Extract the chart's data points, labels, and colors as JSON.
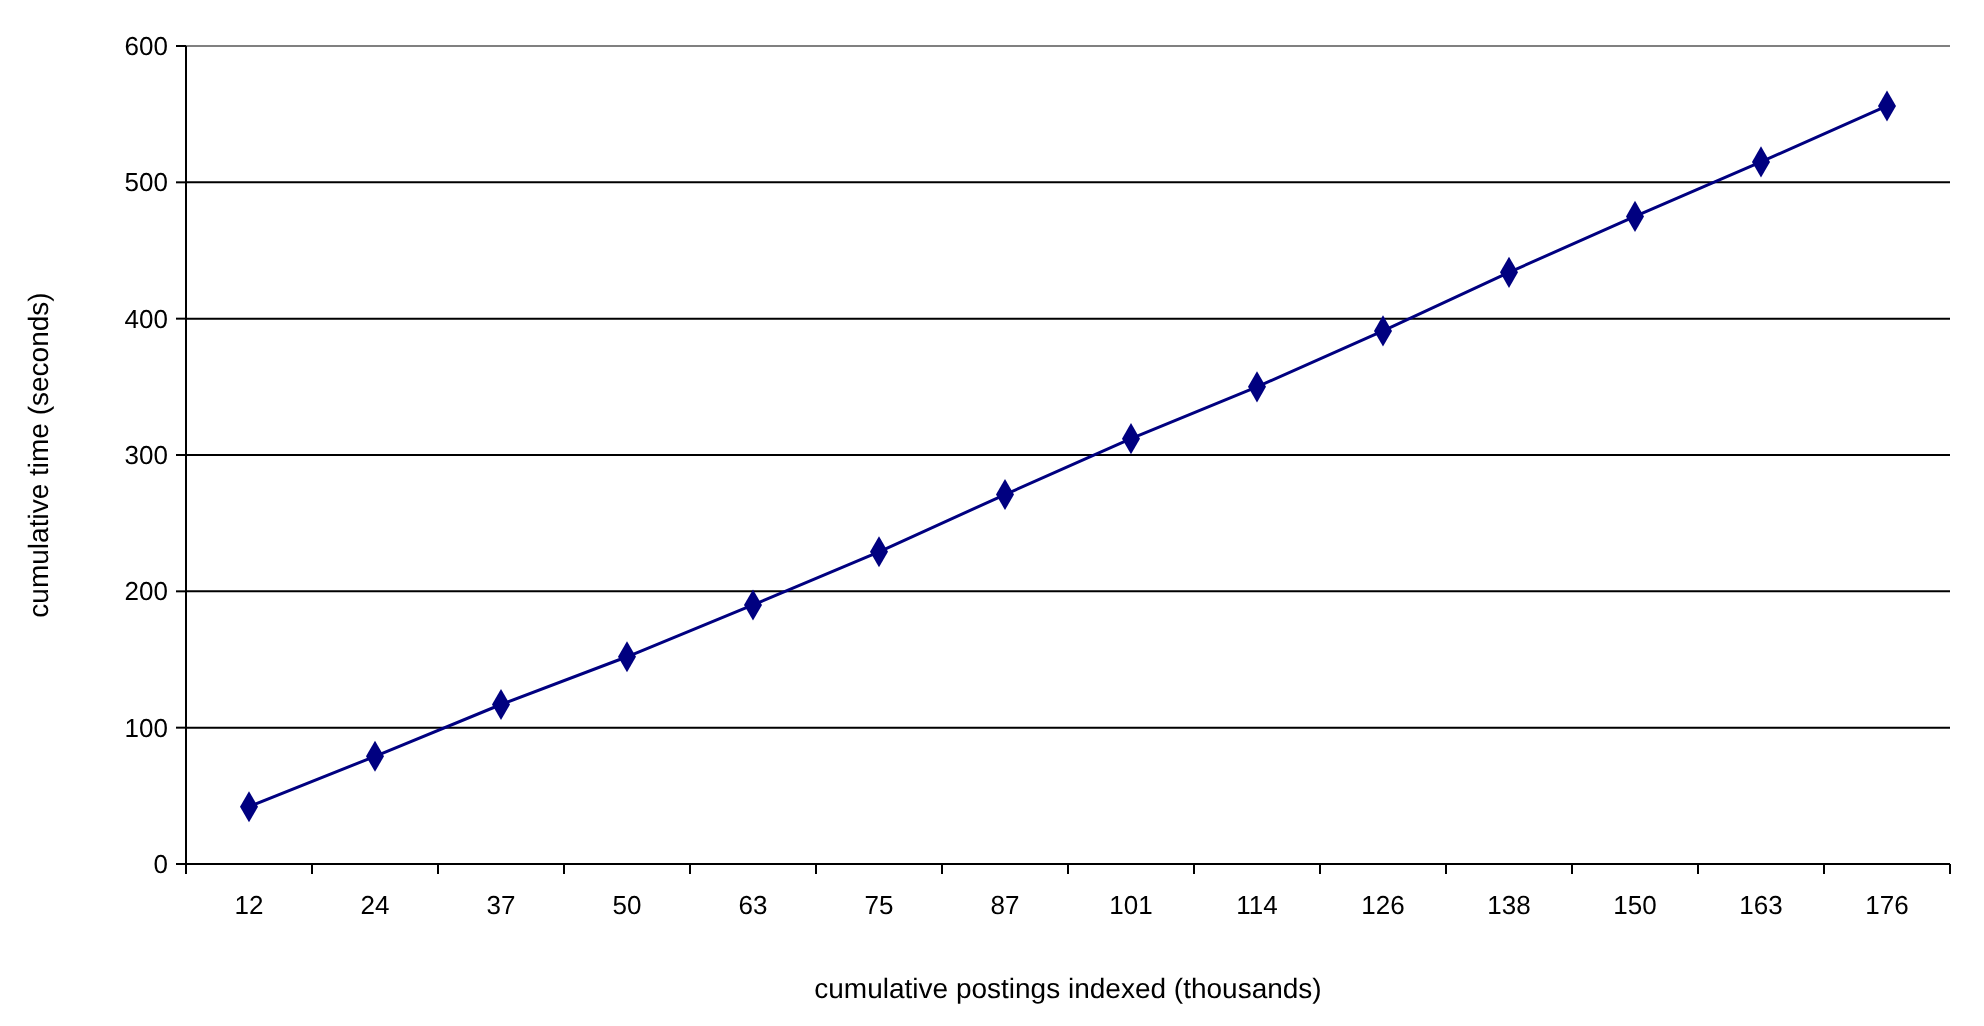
{
  "chart_data": {
    "type": "line",
    "xlabel": "cumulative postings indexed (thousands)",
    "ylabel": "cumulative time (seconds)",
    "categories": [
      "12",
      "24",
      "37",
      "50",
      "63",
      "75",
      "87",
      "101",
      "114",
      "126",
      "138",
      "150",
      "163",
      "176"
    ],
    "series": [
      {
        "color": "#000080",
        "values": [
          42,
          79,
          117,
          152,
          190,
          229,
          271,
          312,
          350,
          391,
          434,
          475,
          515,
          556
        ]
      }
    ],
    "ylim": [
      0,
      600
    ],
    "yticks": [
      0,
      100,
      200,
      300,
      400,
      500,
      600
    ],
    "grid": "y",
    "marker": "diamond",
    "line_style": "solid"
  }
}
